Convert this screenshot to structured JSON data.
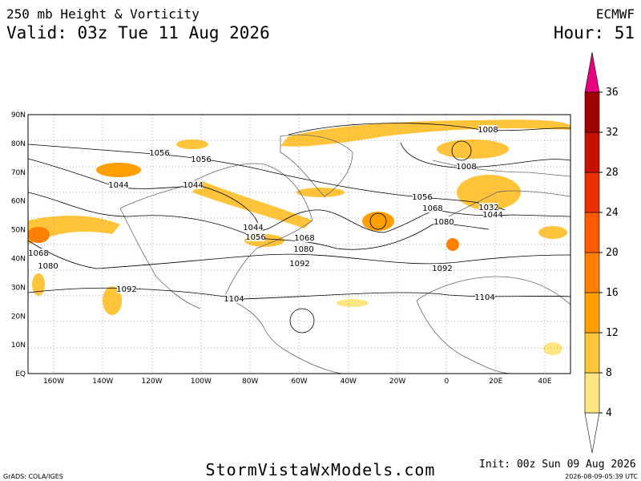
{
  "header": {
    "title": "250 mb Height & Vorticity",
    "valid": "Valid: 03z Tue 11 Aug 2026",
    "model": "ECMWF",
    "hour": "Hour: 51"
  },
  "map": {
    "lat_labels": [
      "90N",
      "80N",
      "70N",
      "60N",
      "50N",
      "40N",
      "30N",
      "20N",
      "10N",
      "EQ"
    ],
    "lon_labels": [
      "160W",
      "140W",
      "120W",
      "100W",
      "80W",
      "60W",
      "40W",
      "20W",
      "0",
      "20E",
      "40E"
    ],
    "contour_labels": [
      "1008",
      "1056",
      "1056",
      "1008",
      "1044",
      "1044",
      "1056",
      "1068",
      "1032",
      "1044",
      "1080",
      "1044",
      "1056",
      "1068",
      "1068",
      "1080",
      "1080",
      "1092",
      "1092",
      "1092",
      "1104",
      "1104"
    ]
  },
  "colorbar": {
    "ticks": [
      4,
      8,
      12,
      16,
      20,
      24,
      28,
      32,
      36
    ],
    "colors": [
      "#ffe680",
      "#ffc43a",
      "#ffa000",
      "#ff8000",
      "#ff5a00",
      "#e83000",
      "#c81000",
      "#a00000"
    ],
    "top_color": "#e8007f",
    "bottom_color": "#ffffff"
  },
  "footer": {
    "credit": "GrADS: COLA/IGES",
    "site": "StormVistaWxModels.com",
    "init": "Init: 00z Sun 09 Aug 2026",
    "stamp": "2026-08-09-05:39 UTC"
  }
}
